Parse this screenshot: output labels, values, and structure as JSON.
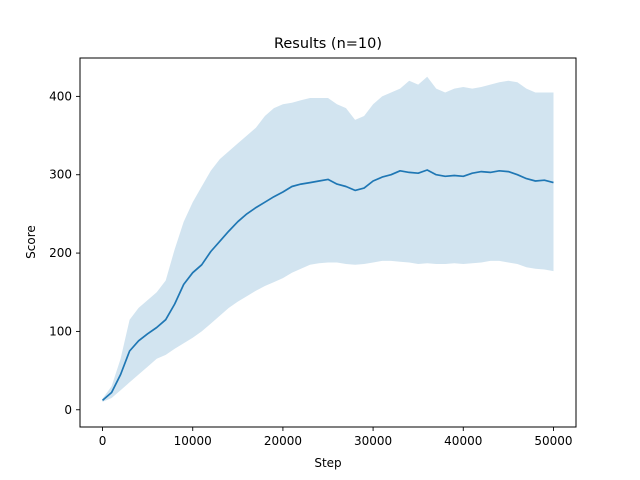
{
  "chart_data": {
    "type": "area",
    "title": "Results (n=10)",
    "xlabel": "Step",
    "ylabel": "Score",
    "xlim": [
      -2500,
      52500
    ],
    "ylim": [
      -22,
      449
    ],
    "xticks": [
      0,
      10000,
      20000,
      30000,
      40000,
      50000
    ],
    "yticks": [
      0,
      100,
      200,
      300,
      400
    ],
    "grid": false,
    "colors": {
      "line": "#1f77b4",
      "band": "#1f77b4",
      "band_opacity": 0.2
    },
    "series": [
      {
        "x": [
          0,
          1000,
          2000,
          3000,
          4000,
          5000,
          6000,
          7000,
          8000,
          9000,
          10000,
          11000,
          12000,
          13000,
          14000,
          15000,
          16000,
          17000,
          18000,
          19000,
          20000,
          21000,
          22000,
          23000,
          24000,
          25000,
          26000,
          27000,
          28000,
          29000,
          30000,
          31000,
          32000,
          33000,
          34000,
          35000,
          36000,
          37000,
          38000,
          39000,
          40000,
          41000,
          42000,
          43000,
          44000,
          45000,
          46000,
          47000,
          48000,
          49000,
          50000
        ],
        "mean": [
          12,
          22,
          45,
          75,
          88,
          97,
          105,
          115,
          135,
          160,
          175,
          185,
          202,
          215,
          228,
          240,
          250,
          258,
          265,
          272,
          278,
          285,
          288,
          290,
          292,
          294,
          288,
          285,
          280,
          283,
          292,
          297,
          300,
          305,
          303,
          302,
          306,
          300,
          298,
          299,
          298,
          302,
          304,
          303,
          305,
          304,
          300,
          295,
          292,
          293,
          290
        ],
        "upper": [
          14,
          30,
          65,
          115,
          130,
          140,
          150,
          165,
          205,
          240,
          265,
          285,
          305,
          320,
          330,
          340,
          350,
          360,
          375,
          385,
          390,
          392,
          395,
          398,
          398,
          398,
          390,
          385,
          370,
          375,
          390,
          400,
          405,
          410,
          420,
          415,
          425,
          410,
          405,
          410,
          412,
          410,
          412,
          415,
          418,
          420,
          418,
          410,
          405,
          405,
          405
        ],
        "lower": [
          10,
          15,
          25,
          35,
          45,
          55,
          65,
          70,
          78,
          85,
          92,
          100,
          110,
          120,
          130,
          138,
          145,
          152,
          158,
          163,
          168,
          175,
          180,
          185,
          187,
          188,
          188,
          186,
          185,
          186,
          188,
          190,
          190,
          189,
          188,
          186,
          187,
          186,
          186,
          187,
          186,
          187,
          188,
          190,
          190,
          188,
          186,
          182,
          180,
          179,
          177
        ]
      }
    ]
  }
}
